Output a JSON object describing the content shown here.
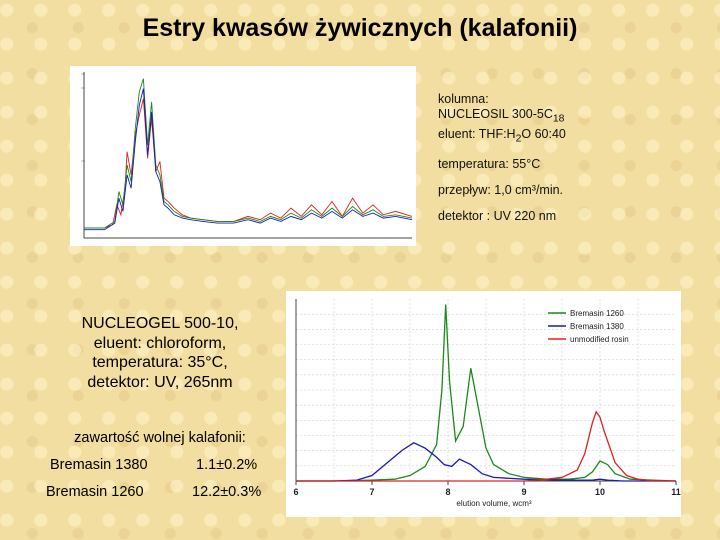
{
  "title": "Estry kwasów żywicznych (kalafonii)",
  "conditions1": {
    "line1": "kolumna:",
    "line2_main": "NUCLEOSIL 300-5C",
    "line2_sub": "18",
    "line3_a": "eluent: THF:H",
    "line3_sub": "2",
    "line3_b": "O 60:40",
    "temperature": "temperatura: 55°C",
    "flow": "przepływ: 1,0 cm³/min.",
    "detector": "detektor : UV 220 nm"
  },
  "conditions2": [
    "NUCLEOGEL 500-10,",
    "eluent: chloroform,",
    "temperatura: 35°C,",
    "detektor: UV, 265nm"
  ],
  "content": {
    "title": "zawartość wolnej kalafonii:",
    "rows": [
      {
        "name": "Bremasin 1380",
        "value": "1.1±0.2%"
      },
      {
        "name": "Bremasin 1260",
        "value": "12.2±0.3%"
      }
    ]
  },
  "colors": {
    "background": "#f2dea0",
    "green": "#1a8a1a",
    "blue": "#1a1ab4",
    "red": "#e02020"
  },
  "chart_data": [
    {
      "type": "line",
      "xlabel": "",
      "ylabel": "",
      "xlim": [
        0,
        16
      ],
      "ylim": [
        0,
        100
      ],
      "series": [
        {
          "color": "#e02020",
          "x": [
            0,
            1,
            1.4,
            1.6,
            1.8,
            2,
            2.1,
            2.3,
            2.5,
            2.7,
            2.9,
            3.1,
            3.3,
            3.5,
            3.7,
            3.9,
            4.1,
            4.4,
            4.8,
            5.2,
            5.8,
            6.5,
            7.3,
            8,
            8.6,
            9.1,
            9.6,
            10.1,
            10.6,
            11.1,
            11.6,
            12.1,
            12.6,
            13.1,
            13.6,
            14.1,
            14.6,
            15.2,
            16
          ],
          "y": [
            6,
            6,
            8,
            20,
            14,
            30,
            52,
            38,
            62,
            74,
            84,
            48,
            72,
            40,
            46,
            24,
            22,
            18,
            14,
            12,
            11,
            10,
            10,
            13,
            11,
            15,
            12,
            18,
            13,
            20,
            14,
            22,
            13,
            24,
            15,
            20,
            14,
            16,
            13
          ]
        },
        {
          "color": "#1a8a1a",
          "x": [
            0,
            1,
            1.5,
            1.7,
            1.9,
            2.1,
            2.3,
            2.5,
            2.7,
            2.9,
            3.1,
            3.3,
            3.5,
            3.7,
            3.9,
            4.1,
            4.4,
            4.8,
            5.2,
            5.8,
            6.5,
            7.3,
            8,
            8.6,
            9.1,
            9.6,
            10.1,
            10.6,
            11.1,
            11.6,
            12.1,
            12.6,
            13.1,
            13.6,
            14.1,
            14.6,
            15.2,
            16
          ],
          "y": [
            6,
            6,
            10,
            28,
            20,
            44,
            34,
            66,
            88,
            96,
            56,
            82,
            44,
            38,
            22,
            20,
            16,
            13,
            12,
            11,
            10,
            10,
            12,
            10,
            13,
            11,
            15,
            12,
            17,
            13,
            18,
            13,
            19,
            14,
            17,
            13,
            14,
            12
          ]
        },
        {
          "color": "#1a1ab4",
          "x": [
            0,
            1,
            1.5,
            1.7,
            1.9,
            2.1,
            2.3,
            2.5,
            2.7,
            2.9,
            3.1,
            3.3,
            3.5,
            3.7,
            3.9,
            4.1,
            4.4,
            4.8,
            5.2,
            5.8,
            6.5,
            7.3,
            8,
            8.6,
            9.1,
            9.6,
            10.1,
            10.6,
            11.1,
            11.6,
            12.1,
            12.6,
            13.1,
            13.6,
            14.1,
            14.6,
            15.2,
            16
          ],
          "y": [
            5,
            5,
            9,
            24,
            16,
            38,
            30,
            58,
            80,
            90,
            50,
            76,
            40,
            34,
            20,
            18,
            14,
            12,
            11,
            10,
            9,
            9,
            11,
            9,
            12,
            10,
            13,
            11,
            15,
            12,
            16,
            12,
            17,
            13,
            15,
            12,
            13,
            11
          ]
        }
      ]
    },
    {
      "type": "line",
      "xlabel": "elution volume, ᴡcm³",
      "ylabel": "",
      "xlim": [
        6,
        11
      ],
      "ylim": [
        0,
        100
      ],
      "x_ticks": [
        "6",
        "7",
        "8",
        "9",
        "10",
        "11"
      ],
      "legend": {
        "position": "top-right"
      },
      "series": [
        {
          "name": "Bremasin 1260",
          "color": "#1a8a1a",
          "x": [
            6,
            6.5,
            7,
            7.3,
            7.5,
            7.7,
            7.85,
            7.92,
            7.97,
            8.02,
            8.1,
            8.2,
            8.3,
            8.4,
            8.5,
            8.6,
            8.8,
            9,
            9.3,
            9.6,
            9.8,
            9.9,
            10,
            10.1,
            10.2,
            10.4,
            10.7,
            11
          ],
          "y": [
            0,
            0,
            0.5,
            1,
            3,
            8,
            20,
            50,
            97,
            55,
            22,
            30,
            62,
            40,
            18,
            9,
            4,
            2,
            1,
            1,
            2,
            5,
            11,
            9,
            4,
            1,
            0.5,
            0
          ]
        },
        {
          "name": "Bremasin 1380",
          "color": "#1a1ab4",
          "x": [
            6,
            6.5,
            6.8,
            7,
            7.2,
            7.4,
            7.55,
            7.7,
            7.85,
            7.95,
            8.05,
            8.15,
            8.3,
            8.45,
            8.6,
            9,
            9.5,
            9.9,
            10,
            10.1,
            10.3,
            10.7,
            11
          ],
          "y": [
            0,
            0,
            0.5,
            3,
            10,
            17,
            21,
            18,
            13,
            9,
            8,
            12,
            9,
            4,
            2,
            1,
            0.5,
            0.5,
            1,
            0.5,
            0,
            0,
            0
          ]
        },
        {
          "name": "unmodified rosin",
          "color": "#e02020",
          "x": [
            6,
            7,
            8,
            8.5,
            9,
            9.3,
            9.5,
            9.7,
            9.8,
            9.9,
            9.95,
            10,
            10.05,
            10.1,
            10.2,
            10.35,
            10.5,
            10.7,
            11
          ],
          "y": [
            0,
            0,
            0,
            0,
            0,
            1,
            2,
            6,
            15,
            32,
            38,
            35,
            28,
            22,
            10,
            3,
            1,
            0,
            0
          ]
        }
      ]
    }
  ]
}
